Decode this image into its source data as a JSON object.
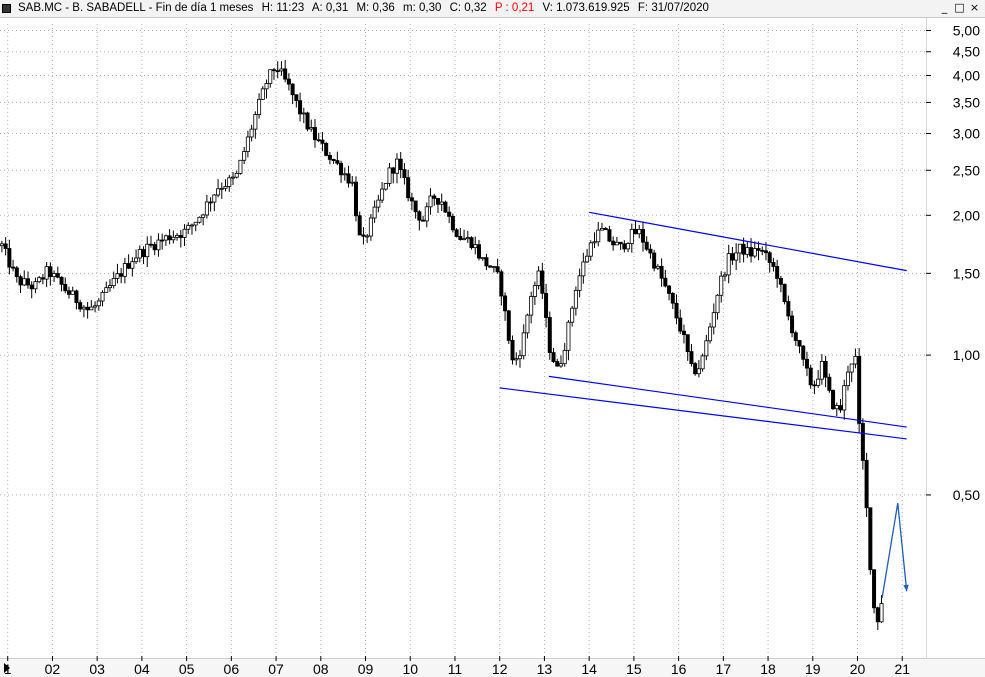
{
  "header": {
    "symbol": "SAB.MC - B. SABADELL - Fin de día 1 meses",
    "h": "H: 11:23",
    "a": "A: 0,31",
    "m": "M: 0,36",
    "mm": "m: 0,30",
    "c": "C: 0,32",
    "p": "P : 0,21",
    "v": "V: 1.073.619.925",
    "f": "F: 31/07/2020",
    "window_controls": [
      "_",
      "□",
      "×"
    ]
  },
  "chart_data": {
    "type": "candlestick",
    "y_scale": "log",
    "ylim": [
      0.225,
      5.15
    ],
    "y_ticks": [
      {
        "value": 5.0,
        "label": "5,00"
      },
      {
        "value": 4.5,
        "label": "4,50"
      },
      {
        "value": 4.0,
        "label": "4,00"
      },
      {
        "value": 3.5,
        "label": "3,50"
      },
      {
        "value": 3.0,
        "label": "3,00"
      },
      {
        "value": 2.5,
        "label": "2,50"
      },
      {
        "value": 2.0,
        "label": "2,00"
      },
      {
        "value": 1.5,
        "label": "1,50"
      },
      {
        "value": 1.0,
        "label": "1,00"
      },
      {
        "value": 0.5,
        "label": "0,50"
      }
    ],
    "x_ticks": [
      {
        "value": 2001,
        "label": "1"
      },
      {
        "value": 2002,
        "label": "02"
      },
      {
        "value": 2003,
        "label": "03"
      },
      {
        "value": 2004,
        "label": "04"
      },
      {
        "value": 2005,
        "label": "05"
      },
      {
        "value": 2006,
        "label": "06"
      },
      {
        "value": 2007,
        "label": "07"
      },
      {
        "value": 2008,
        "label": "08"
      },
      {
        "value": 2009,
        "label": "09"
      },
      {
        "value": 2010,
        "label": "10"
      },
      {
        "value": 2011,
        "label": "11"
      },
      {
        "value": 2012,
        "label": "12"
      },
      {
        "value": 2013,
        "label": "13"
      },
      {
        "value": 2014,
        "label": "14"
      },
      {
        "value": 2015,
        "label": "15"
      },
      {
        "value": 2016,
        "label": "16"
      },
      {
        "value": 2017,
        "label": "17"
      },
      {
        "value": 2018,
        "label": "18"
      },
      {
        "value": 2019,
        "label": "19"
      },
      {
        "value": 2020,
        "label": "20"
      },
      {
        "value": 2021,
        "label": "21"
      }
    ],
    "xlim": [
      2000.85,
      2021.5
    ],
    "grid": true,
    "price_path": [
      [
        2000.87,
        1.72
      ],
      [
        2001.2,
        1.45
      ],
      [
        2001.6,
        1.4
      ],
      [
        2001.9,
        1.52
      ],
      [
        2002.3,
        1.38
      ],
      [
        2002.8,
        1.25
      ],
      [
        2003.0,
        1.28
      ],
      [
        2003.4,
        1.45
      ],
      [
        2003.8,
        1.62
      ],
      [
        2004.2,
        1.72
      ],
      [
        2004.6,
        1.8
      ],
      [
        2005.0,
        1.85
      ],
      [
        2005.3,
        2.0
      ],
      [
        2005.7,
        2.3
      ],
      [
        2006.1,
        2.4
      ],
      [
        2006.5,
        3.2
      ],
      [
        2006.8,
        3.9
      ],
      [
        2007.0,
        4.2
      ],
      [
        2007.3,
        3.75
      ],
      [
        2007.5,
        3.4
      ],
      [
        2007.8,
        3.0
      ],
      [
        2008.1,
        2.75
      ],
      [
        2008.4,
        2.55
      ],
      [
        2008.7,
        2.35
      ],
      [
        2008.9,
        1.7
      ],
      [
        2009.1,
        1.9
      ],
      [
        2009.3,
        2.15
      ],
      [
        2009.5,
        2.45
      ],
      [
        2009.7,
        2.6
      ],
      [
        2009.9,
        2.3
      ],
      [
        2010.1,
        2.05
      ],
      [
        2010.3,
        1.95
      ],
      [
        2010.5,
        2.2
      ],
      [
        2010.7,
        2.15
      ],
      [
        2010.9,
        1.95
      ],
      [
        2011.1,
        1.8
      ],
      [
        2011.4,
        1.75
      ],
      [
        2011.6,
        1.6
      ],
      [
        2011.8,
        1.55
      ],
      [
        2012.0,
        1.45
      ],
      [
        2012.3,
        0.95
      ],
      [
        2012.5,
        1.05
      ],
      [
        2012.7,
        1.35
      ],
      [
        2012.9,
        1.5
      ],
      [
        2013.1,
        1.05
      ],
      [
        2013.3,
        0.92
      ],
      [
        2013.5,
        1.1
      ],
      [
        2013.7,
        1.4
      ],
      [
        2013.9,
        1.6
      ],
      [
        2014.1,
        1.8
      ],
      [
        2014.3,
        1.85
      ],
      [
        2014.5,
        1.75
      ],
      [
        2014.7,
        1.7
      ],
      [
        2014.9,
        1.8
      ],
      [
        2015.1,
        1.85
      ],
      [
        2015.3,
        1.7
      ],
      [
        2015.5,
        1.55
      ],
      [
        2015.7,
        1.4
      ],
      [
        2015.9,
        1.25
      ],
      [
        2016.1,
        1.1
      ],
      [
        2016.3,
        0.92
      ],
      [
        2016.5,
        0.95
      ],
      [
        2016.7,
        1.15
      ],
      [
        2016.9,
        1.4
      ],
      [
        2017.1,
        1.6
      ],
      [
        2017.4,
        1.7
      ],
      [
        2017.6,
        1.65
      ],
      [
        2017.8,
        1.7
      ],
      [
        2018.0,
        1.6
      ],
      [
        2018.2,
        1.5
      ],
      [
        2018.4,
        1.25
      ],
      [
        2018.6,
        1.1
      ],
      [
        2018.8,
        0.95
      ],
      [
        2019.0,
        0.85
      ],
      [
        2019.2,
        0.95
      ],
      [
        2019.4,
        0.8
      ],
      [
        2019.6,
        0.75
      ],
      [
        2019.8,
        0.95
      ],
      [
        2019.95,
        1.0
      ],
      [
        2020.0,
        0.75
      ],
      [
        2020.15,
        0.55
      ],
      [
        2020.25,
        0.4
      ],
      [
        2020.35,
        0.29
      ],
      [
        2020.45,
        0.27
      ],
      [
        2020.55,
        0.3
      ]
    ],
    "trendlines": [
      {
        "color": "#0000ff",
        "from": [
          2014.0,
          2.03
        ],
        "to": [
          2021.1,
          1.52
        ]
      },
      {
        "color": "#0000ff",
        "from": [
          2013.1,
          0.9
        ],
        "to": [
          2021.1,
          0.7
        ]
      },
      {
        "color": "#0000ff",
        "from": [
          2012.0,
          0.85
        ],
        "to": [
          2021.1,
          0.66
        ]
      }
    ],
    "projection": {
      "color": "#1c5fb8",
      "points": [
        [
          2020.55,
          0.3
        ],
        [
          2020.9,
          0.48
        ],
        [
          2021.1,
          0.31
        ]
      ]
    },
    "colors": {
      "candles": "#000000",
      "grid": "#b5b5b5",
      "trendline": "#0000ff",
      "projection": "#1c5fb8"
    }
  }
}
